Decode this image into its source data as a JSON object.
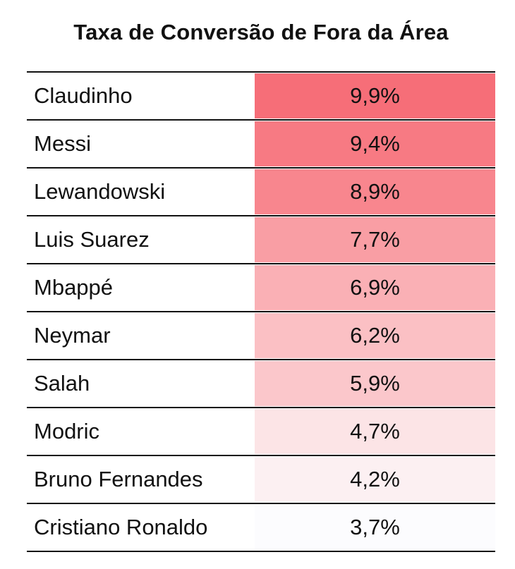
{
  "chart_data": {
    "type": "table",
    "title": "Taxa de Conversão de Fora da Área",
    "columns": [
      "",
      ""
    ],
    "rows": [
      {
        "player": "Claudinho",
        "label": "9,9%",
        "value": 9.9,
        "color": "#f66e78"
      },
      {
        "player": "Messi",
        "label": "9,4%",
        "value": 9.4,
        "color": "#f77a83"
      },
      {
        "player": "Lewandowski",
        "label": "8,9%",
        "value": 8.9,
        "color": "#f8868e"
      },
      {
        "player": "Luis Suarez",
        "label": "7,7%",
        "value": 7.7,
        "color": "#f99ea4"
      },
      {
        "player": "Mbappé",
        "label": "6,9%",
        "value": 6.9,
        "color": "#fab0b5"
      },
      {
        "player": "Neymar",
        "label": "6,2%",
        "value": 6.2,
        "color": "#fbc0c4"
      },
      {
        "player": "Salah",
        "label": "5,9%",
        "value": 5.9,
        "color": "#fbc7cb"
      },
      {
        "player": "Modric",
        "label": "4,7%",
        "value": 4.7,
        "color": "#fce4e6"
      },
      {
        "player": "Bruno Fernandes",
        "label": "4,2%",
        "value": 4.2,
        "color": "#fcf0f2"
      },
      {
        "player": "Cristiano Ronaldo",
        "label": "3,7%",
        "value": 3.7,
        "color": "#fcfcfe"
      }
    ]
  }
}
